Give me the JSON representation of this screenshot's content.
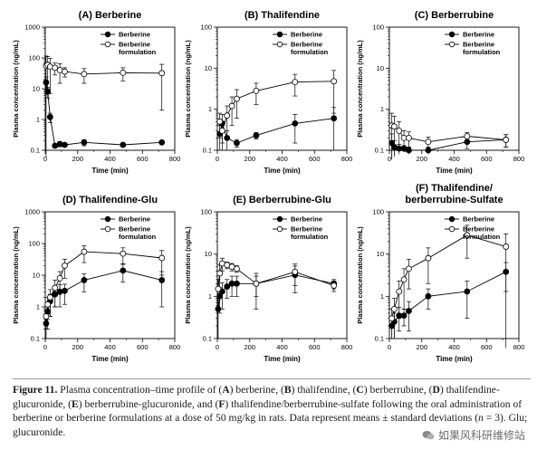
{
  "chart_data": [
    {
      "type": "line",
      "title": "(A) Berberine",
      "xlabel": "Time (min)",
      "ylabel": "Plasma concentration (ng/mL)",
      "xlim": [
        0,
        800
      ],
      "ylim": [
        0.1,
        1000
      ],
      "yscale": "log",
      "xticks": [
        "0",
        "200",
        "400",
        "600",
        "800"
      ],
      "yticks": [
        "0.1",
        "1",
        "10",
        "100",
        "1000"
      ],
      "legend": [
        "Berberine",
        "Berberine formulation"
      ],
      "series": [
        {
          "name": "Berberine",
          "marker": "filled",
          "x": [
            5,
            15,
            30,
            60,
            90,
            120,
            240,
            480,
            720
          ],
          "y": [
            16,
            8,
            1.2,
            0.14,
            0.16,
            0.15,
            0.18,
            0.15,
            0.18
          ],
          "sd": [
            8,
            3,
            0.4,
            0.02,
            0.03,
            0.02,
            0.04,
            0.02,
            0.02
          ]
        },
        {
          "name": "Berberine formulation",
          "marker": "open",
          "x": [
            5,
            15,
            30,
            60,
            90,
            120,
            240,
            480,
            720
          ],
          "y": [
            55,
            60,
            52,
            48,
            40,
            36,
            30,
            33,
            32
          ],
          "sd": [
            60,
            50,
            45,
            20,
            25,
            12,
            15,
            15,
            30
          ]
        }
      ]
    },
    {
      "type": "line",
      "title": "(B) Thalifendine",
      "xlabel": "Time (min)",
      "ylabel": "Plasma concentration (ng/mL)",
      "xlim": [
        0,
        800
      ],
      "ylim": [
        0.1,
        100
      ],
      "yscale": "log",
      "xticks": [
        "0",
        "200",
        "400",
        "600",
        "800"
      ],
      "yticks": [
        "0.1",
        "1",
        "10",
        "100"
      ],
      "legend": [
        "Berberine",
        "Berberine formulation"
      ],
      "series": [
        {
          "name": "Berberine",
          "marker": "filled",
          "x": [
            15,
            30,
            60,
            120,
            240,
            480,
            720
          ],
          "y": [
            0.25,
            0.45,
            0.2,
            0.15,
            0.23,
            0.45,
            0.6
          ],
          "sd": [
            0.15,
            0.3,
            0.1,
            0.03,
            0.04,
            0.3,
            0.5
          ]
        },
        {
          "name": "Berberine formulation",
          "marker": "open",
          "x": [
            15,
            30,
            60,
            90,
            120,
            240,
            480,
            720
          ],
          "y": [
            0.5,
            0.3,
            0.7,
            1.2,
            1.8,
            2.8,
            4.6,
            4.8
          ],
          "sd": [
            0.3,
            0.2,
            0.5,
            0.8,
            1.2,
            1.5,
            2.5,
            4
          ]
        }
      ]
    },
    {
      "type": "line",
      "title": "(C) Berberrubine",
      "xlabel": "Time (min)",
      "ylabel": "Plasma concentration (ng/mL)",
      "xlim": [
        0,
        800
      ],
      "ylim": [
        0.1,
        100
      ],
      "yscale": "log",
      "xticks": [
        "0",
        "200",
        "400",
        "600",
        "800"
      ],
      "yticks": [
        "0.1",
        "1",
        "10",
        "100"
      ],
      "legend": [
        "Berberine",
        "Berberine formulation"
      ],
      "series": [
        {
          "name": "Berberine",
          "marker": "filled",
          "x": [
            15,
            30,
            60,
            90,
            120,
            240,
            480,
            720
          ],
          "y": [
            0.15,
            0.12,
            0.11,
            0.11,
            0.1,
            0.1,
            0.16,
            0.18
          ],
          "sd": [
            0.1,
            0.05,
            0.03,
            0.02,
            0.02,
            0.02,
            0.05,
            0.06
          ]
        },
        {
          "name": "Berberine formulation",
          "marker": "open",
          "x": [
            15,
            30,
            60,
            90,
            120,
            240,
            480,
            720
          ],
          "y": [
            0.4,
            0.38,
            0.3,
            0.2,
            0.2,
            0.16,
            0.22,
            0.18
          ],
          "sd": [
            0.4,
            0.3,
            0.2,
            0.1,
            0.08,
            0.05,
            0.05,
            0.06
          ]
        }
      ]
    },
    {
      "type": "line",
      "title": "(D) Thalifendine-Glu",
      "xlabel": "Time (min)",
      "ylabel": "Plasma concentration (ng/mL)",
      "xlim": [
        0,
        800
      ],
      "ylim": [
        0.1,
        1000
      ],
      "yscale": "log",
      "xticks": [
        "0",
        "200",
        "400",
        "600",
        "800"
      ],
      "yticks": [
        "0.1",
        "1",
        "10",
        "100",
        "1000"
      ],
      "legend": [
        "Berberine",
        "Berberine formulation"
      ],
      "series": [
        {
          "name": "Berberine",
          "marker": "filled",
          "x": [
            5,
            15,
            30,
            60,
            90,
            120,
            240,
            480,
            720
          ],
          "y": [
            0.3,
            0.7,
            1.5,
            2.5,
            3,
            3.2,
            7,
            14,
            7
          ],
          "sd": [
            0.2,
            0.5,
            1,
            1.5,
            2,
            2,
            4,
            8,
            6
          ]
        },
        {
          "name": "Berberine formulation",
          "marker": "open",
          "x": [
            5,
            15,
            30,
            60,
            90,
            120,
            240,
            480,
            720
          ],
          "y": [
            0.5,
            1.2,
            2,
            4,
            8,
            20,
            55,
            48,
            35
          ],
          "sd": [
            0.3,
            0.8,
            1.5,
            3,
            5,
            12,
            30,
            25,
            25
          ]
        }
      ]
    },
    {
      "type": "line",
      "title": "(E) Berberrubine-Glu",
      "xlabel": "Time (min)",
      "ylabel": "Plasma concentration (ng/mL)",
      "xlim": [
        0,
        800
      ],
      "ylim": [
        0.1,
        100
      ],
      "yscale": "log",
      "xticks": [
        "0",
        "200",
        "400",
        "600",
        "800"
      ],
      "yticks": [
        "0.1",
        "1",
        "10",
        "100"
      ],
      "legend": [
        "Berberine",
        "Berberine formulation"
      ],
      "series": [
        {
          "name": "Berberine",
          "marker": "filled",
          "x": [
            5,
            15,
            30,
            60,
            90,
            120,
            240,
            480,
            720
          ],
          "y": [
            0.5,
            1,
            1.3,
            1.7,
            2,
            2,
            2,
            3.2,
            2
          ],
          "sd": [
            0.4,
            0.6,
            0.8,
            0.8,
            1,
            1,
            1.5,
            2,
            0.5
          ]
        },
        {
          "name": "Berberine formulation",
          "marker": "open",
          "x": [
            5,
            15,
            30,
            60,
            90,
            120,
            240,
            480,
            720
          ],
          "y": [
            1.5,
            3.5,
            6,
            5.5,
            5,
            4.5,
            2,
            3.8,
            1.8
          ],
          "sd": [
            1,
            2,
            2,
            1,
            1,
            0.8,
            1,
            2,
            0.5
          ]
        }
      ]
    },
    {
      "type": "line",
      "title": "(F) Thalifendine/\nberberrubine-Sulfate",
      "title_lines": [
        "(F) Thalifendine/",
        "berberrubine-Sulfate"
      ],
      "xlabel": "Time (min)",
      "ylabel": "Plasma concentration (ng/mL)",
      "xlim": [
        0,
        800
      ],
      "ylim": [
        0.1,
        100
      ],
      "yscale": "log",
      "xticks": [
        "0",
        "200",
        "400",
        "600",
        "800"
      ],
      "yticks": [
        "0.1",
        "1",
        "10",
        "100"
      ],
      "legend": [
        "Berberine",
        "Berberine formulation"
      ],
      "series": [
        {
          "name": "Berberine",
          "marker": "filled",
          "x": [
            15,
            30,
            60,
            90,
            120,
            240,
            480,
            720
          ],
          "y": [
            0.2,
            0.25,
            0.35,
            0.35,
            0.45,
            1,
            1.3,
            3.8
          ],
          "sd": [
            0.1,
            0.15,
            0.2,
            0.15,
            0.3,
            0.5,
            1,
            2.5
          ]
        },
        {
          "name": "Berberine formulation",
          "marker": "open",
          "x": [
            15,
            30,
            60,
            90,
            120,
            240,
            480,
            720
          ],
          "y": [
            0.3,
            0.5,
            1.3,
            2.5,
            4.5,
            8,
            28,
            15
          ],
          "sd": [
            0.2,
            0.4,
            1,
            2,
            3,
            6,
            20,
            15
          ]
        }
      ]
    }
  ],
  "caption": {
    "label": "Figure 11.",
    "segments": [
      {
        "t": " Plasma concentration–time profile of ("
      },
      {
        "t": "A",
        "b": true
      },
      {
        "t": ") berberine, ("
      },
      {
        "t": "B",
        "b": true
      },
      {
        "t": ") thalifendine, ("
      },
      {
        "t": "C",
        "b": true
      },
      {
        "t": ") berberrubine, ("
      },
      {
        "t": "D",
        "b": true
      },
      {
        "t": ") thalifendine-glucuronide, ("
      },
      {
        "t": "E",
        "b": true
      },
      {
        "t": ") berberrubine-glucuronide, and ("
      },
      {
        "t": "F",
        "b": true
      },
      {
        "t": ") thalifendine/berberrubine-sulfate following the oral administration of berberine or berberine formulations at a dose of 50 mg/kg in rats. Data represent means ± standard deviations ("
      },
      {
        "t": "n",
        "i": true
      },
      {
        "t": " = 3). Glu; glucuronide."
      }
    ]
  },
  "watermark": "如果风科研维修站"
}
